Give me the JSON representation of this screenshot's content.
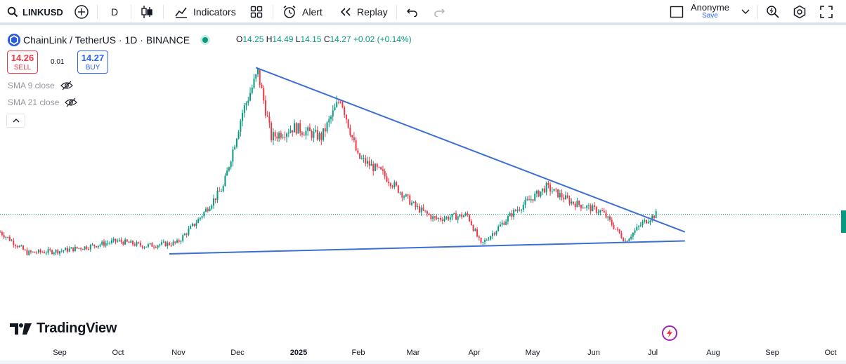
{
  "toolbar": {
    "symbol": "LINKUSD",
    "interval": "D",
    "indicators_label": "Indicators",
    "alert_label": "Alert",
    "replay_label": "Replay",
    "account_name": "Anonyme",
    "save_label": "Save"
  },
  "legend": {
    "title": "ChainLink / TetherUS · 1D · BINANCE",
    "open_label": "O",
    "open": "14.25",
    "high_label": "H",
    "high": "14.49",
    "low_label": "L",
    "low": "14.15",
    "close_label": "C",
    "close": "14.27",
    "change": "+0.02 (+0.14%)",
    "sell_price": "14.26",
    "sell_label": "SELL",
    "spread": "0.01",
    "buy_price": "14.27",
    "buy_label": "BUY",
    "sma9": "SMA 9 close",
    "sma21": "SMA 21 close"
  },
  "x_axis": {
    "labels": [
      "Sep",
      "Oct",
      "Nov",
      "Dec",
      "2025",
      "Feb",
      "Mar",
      "Apr",
      "May",
      "Jun",
      "Jul",
      "Aug",
      "Sep",
      "Oct"
    ]
  },
  "branding": {
    "logo_text": "TradingView"
  },
  "colors": {
    "up": "#089981",
    "down": "#f23645",
    "trendline": "#3b6fd4",
    "accent": "#2962ff"
  },
  "chart_data": {
    "type": "candlestick",
    "symbol": "ChainLink / TetherUS",
    "timeframe": "1D",
    "exchange": "BINANCE",
    "last_close": 14.27,
    "trendlines": [
      {
        "name": "",
        "from": [
          "2024-12-12",
          29.0
        ],
        "to": [
          "2025-07-23",
          12.5
        ]
      },
      {
        "name": "",
        "from": [
          "2024-10-28",
          10.3
        ],
        "to": [
          "2025-07-23",
          11.6
        ]
      }
    ],
    "monthly_path": [
      {
        "date": "2024-08-01",
        "close": 12.5
      },
      {
        "date": "2024-08-15",
        "close": 10.4
      },
      {
        "date": "2024-09-01",
        "close": 10.6
      },
      {
        "date": "2024-09-15",
        "close": 11.0
      },
      {
        "date": "2024-10-01",
        "close": 11.6
      },
      {
        "date": "2024-10-15",
        "close": 11.1
      },
      {
        "date": "2024-11-01",
        "close": 11.4
      },
      {
        "date": "2024-11-12",
        "close": 13.7
      },
      {
        "date": "2024-11-25",
        "close": 17.0
      },
      {
        "date": "2024-12-05",
        "close": 24.5
      },
      {
        "date": "2024-12-13",
        "close": 28.5
      },
      {
        "date": "2024-12-20",
        "close": 22.0
      },
      {
        "date": "2025-01-01",
        "close": 23.0
      },
      {
        "date": "2025-01-15",
        "close": 22.0
      },
      {
        "date": "2025-01-25",
        "close": 26.0
      },
      {
        "date": "2025-02-03",
        "close": 20.0
      },
      {
        "date": "2025-02-15",
        "close": 18.5
      },
      {
        "date": "2025-03-05",
        "close": 15.0
      },
      {
        "date": "2025-03-15",
        "close": 13.8
      },
      {
        "date": "2025-04-01",
        "close": 14.2
      },
      {
        "date": "2025-04-08",
        "close": 11.2
      },
      {
        "date": "2025-04-25",
        "close": 14.5
      },
      {
        "date": "2025-05-12",
        "close": 17.0
      },
      {
        "date": "2025-05-25",
        "close": 15.5
      },
      {
        "date": "2025-06-10",
        "close": 14.5
      },
      {
        "date": "2025-06-22",
        "close": 11.6
      },
      {
        "date": "2025-07-01",
        "close": 13.4
      },
      {
        "date": "2025-07-08",
        "close": 14.27
      }
    ]
  }
}
